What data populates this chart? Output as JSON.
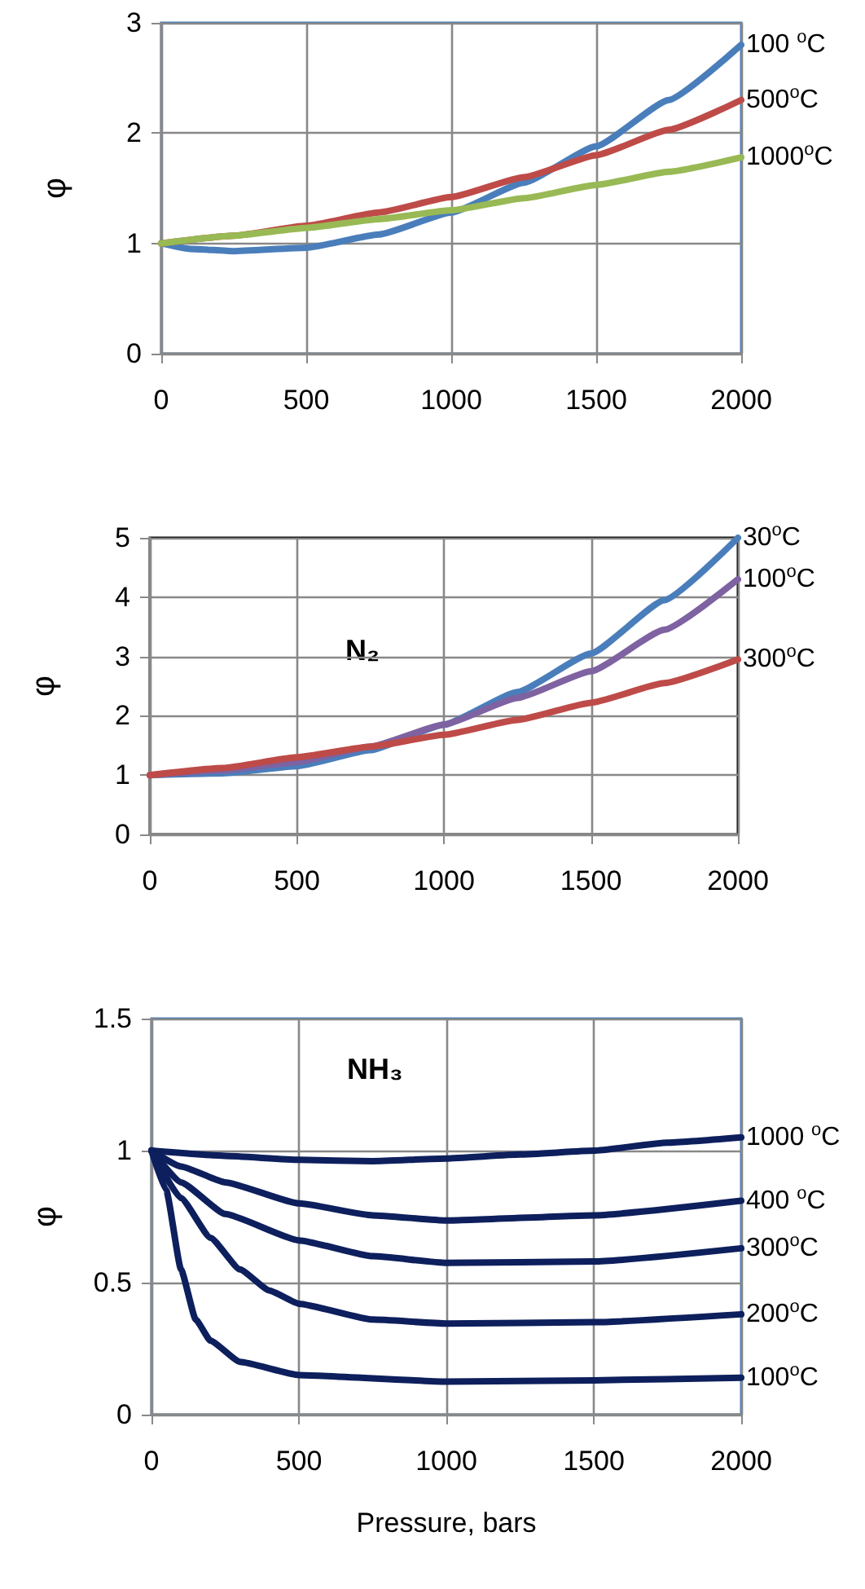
{
  "chart_data": [
    {
      "type": "line",
      "ylabel": "φ",
      "xlim": [
        0,
        2000
      ],
      "xticks": [
        0,
        500,
        1000,
        1500,
        2000
      ],
      "ylim": [
        0,
        3
      ],
      "yticks": [
        0,
        1,
        2,
        3
      ],
      "grid": true,
      "series": [
        {
          "name": "100 $^{o}$C",
          "color": "#4a7ebb",
          "x": [
            0,
            100,
            250,
            500,
            750,
            1000,
            1250,
            1500,
            1750,
            2000
          ],
          "values": [
            1.0,
            0.95,
            0.93,
            0.96,
            1.08,
            1.28,
            1.55,
            1.88,
            2.3,
            2.8
          ]
        },
        {
          "name": "500$^{o}$C",
          "color": "#be4b48",
          "x": [
            0,
            250,
            500,
            750,
            1000,
            1250,
            1500,
            1750,
            2000
          ],
          "values": [
            1.0,
            1.07,
            1.16,
            1.28,
            1.42,
            1.6,
            1.8,
            2.03,
            2.3
          ]
        },
        {
          "name": "1000$^{o}$C",
          "color": "#98b954",
          "x": [
            0,
            250,
            500,
            750,
            1000,
            1250,
            1500,
            1750,
            2000
          ],
          "values": [
            1.0,
            1.07,
            1.14,
            1.22,
            1.3,
            1.41,
            1.53,
            1.65,
            1.78
          ]
        }
      ]
    },
    {
      "type": "line",
      "ylabel": "φ",
      "annotations": [
        "N₂"
      ],
      "xlim": [
        0,
        2000
      ],
      "xticks": [
        0,
        500,
        1000,
        1500,
        2000
      ],
      "ylim": [
        0,
        5
      ],
      "yticks": [
        0,
        1,
        2,
        3,
        4,
        5
      ],
      "grid": true,
      "series": [
        {
          "name": "30$^{o}$C",
          "color": "#4a7ebb",
          "x": [
            0,
            250,
            500,
            750,
            1000,
            1250,
            1500,
            1750,
            2000
          ],
          "values": [
            1.0,
            1.03,
            1.15,
            1.42,
            1.85,
            2.4,
            3.05,
            3.95,
            5.0
          ]
        },
        {
          "name": "100$^{o}$C",
          "color": "#7e62a1",
          "x": [
            0,
            250,
            500,
            750,
            1000,
            1250,
            1500,
            1750,
            2000
          ],
          "values": [
            1.0,
            1.08,
            1.22,
            1.48,
            1.85,
            2.3,
            2.75,
            3.45,
            4.3
          ]
        },
        {
          "name": "300$^{o}$C",
          "color": "#be4b48",
          "x": [
            0,
            250,
            500,
            750,
            1000,
            1250,
            1500,
            1750,
            2000
          ],
          "values": [
            1.0,
            1.12,
            1.3,
            1.48,
            1.68,
            1.93,
            2.22,
            2.55,
            2.95
          ]
        }
      ]
    },
    {
      "type": "line",
      "xlabel": "Pressure, bars",
      "ylabel": "φ",
      "annotations": [
        "NH₃"
      ],
      "xlim": [
        0,
        2000
      ],
      "xticks": [
        0,
        500,
        1000,
        1500,
        2000
      ],
      "ylim": [
        0,
        1.5
      ],
      "yticks": [
        0,
        0.5,
        1,
        1.5
      ],
      "grid": true,
      "series": [
        {
          "name": "1000 $^{o}$C",
          "color": "#0d1f5c",
          "x": [
            0,
            250,
            500,
            750,
            1000,
            1250,
            1500,
            1750,
            2000
          ],
          "values": [
            1.0,
            0.98,
            0.965,
            0.96,
            0.97,
            0.985,
            1.0,
            1.03,
            1.05
          ]
        },
        {
          "name": "400 $^{o}$C",
          "color": "#0d1f5c",
          "x": [
            0,
            100,
            250,
            500,
            750,
            1000,
            1500,
            2000
          ],
          "values": [
            1.0,
            0.94,
            0.88,
            0.8,
            0.755,
            0.735,
            0.755,
            0.81
          ]
        },
        {
          "name": "300$^{o}$C",
          "color": "#0d1f5c",
          "x": [
            0,
            100,
            250,
            500,
            750,
            1000,
            1500,
            2000
          ],
          "values": [
            1.0,
            0.88,
            0.76,
            0.66,
            0.6,
            0.575,
            0.58,
            0.63
          ]
        },
        {
          "name": "200$^{o}$C",
          "color": "#0d1f5c",
          "x": [
            0,
            100,
            200,
            300,
            400,
            500,
            750,
            1000,
            1500,
            2000
          ],
          "values": [
            1.0,
            0.82,
            0.67,
            0.55,
            0.47,
            0.42,
            0.36,
            0.345,
            0.35,
            0.38
          ]
        },
        {
          "name": "100$^{o}$C",
          "color": "#0d1f5c",
          "x": [
            0,
            50,
            100,
            150,
            200,
            300,
            500,
            1000,
            1500,
            2000
          ],
          "values": [
            1.0,
            0.85,
            0.55,
            0.36,
            0.28,
            0.2,
            0.15,
            0.125,
            0.13,
            0.14
          ]
        }
      ]
    }
  ]
}
